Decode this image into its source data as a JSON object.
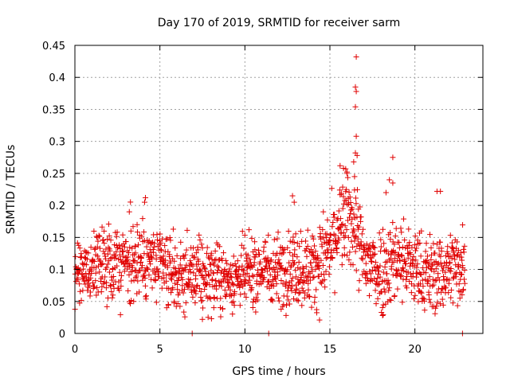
{
  "chart_data": {
    "type": "scatter",
    "title": "Day 170 of 2019, SRMTID for receiver sarm",
    "xlabel": "GPS time / hours",
    "ylabel": "SRMTID / TECUs",
    "xlim": [
      0,
      24
    ],
    "ylim": [
      0,
      0.45
    ],
    "x_ticks": [
      0,
      5,
      10,
      15,
      20
    ],
    "x_tick_labels": [
      "0",
      "5",
      "10",
      "15",
      "20"
    ],
    "y_ticks": [
      0,
      0.05,
      0.1,
      0.15,
      0.2,
      0.25,
      0.3,
      0.35,
      0.4,
      0.45
    ],
    "y_tick_labels": [
      "0",
      "0.05",
      "0.1",
      "0.15",
      "0.2",
      "0.25",
      "0.3",
      "0.35",
      "0.4",
      "0.45"
    ],
    "grid": true,
    "marker": "plus",
    "color": "#e00000",
    "series_color": "#e00000",
    "trend": {
      "hours": [
        0,
        1,
        2,
        3,
        4,
        5,
        6,
        7,
        8,
        9,
        10,
        11,
        12,
        13,
        14,
        15,
        15.5,
        16,
        16.5,
        17,
        18,
        19,
        20,
        21,
        22,
        23
      ],
      "mean": [
        0.09,
        0.1,
        0.11,
        0.11,
        0.115,
        0.105,
        0.09,
        0.09,
        0.09,
        0.085,
        0.09,
        0.1,
        0.1,
        0.105,
        0.1,
        0.13,
        0.16,
        0.18,
        0.17,
        0.11,
        0.1,
        0.12,
        0.1,
        0.09,
        0.1,
        0.11
      ],
      "spread": [
        0.03,
        0.035,
        0.04,
        0.04,
        0.045,
        0.04,
        0.035,
        0.035,
        0.035,
        0.03,
        0.035,
        0.035,
        0.035,
        0.04,
        0.04,
        0.045,
        0.04,
        0.05,
        0.05,
        0.045,
        0.045,
        0.045,
        0.04,
        0.04,
        0.04,
        0.04
      ]
    },
    "notable_points": [
      {
        "x": 16.55,
        "y": 0.432
      },
      {
        "x": 16.5,
        "y": 0.385
      },
      {
        "x": 16.55,
        "y": 0.378
      },
      {
        "x": 16.5,
        "y": 0.354
      },
      {
        "x": 16.55,
        "y": 0.308
      },
      {
        "x": 16.5,
        "y": 0.282
      },
      {
        "x": 16.6,
        "y": 0.278
      },
      {
        "x": 16.4,
        "y": 0.268
      },
      {
        "x": 16.45,
        "y": 0.245
      },
      {
        "x": 15.6,
        "y": 0.262
      },
      {
        "x": 15.8,
        "y": 0.258
      },
      {
        "x": 16.0,
        "y": 0.25
      },
      {
        "x": 18.7,
        "y": 0.275
      },
      {
        "x": 18.5,
        "y": 0.24
      },
      {
        "x": 18.7,
        "y": 0.235
      },
      {
        "x": 18.3,
        "y": 0.22
      },
      {
        "x": 21.3,
        "y": 0.222
      },
      {
        "x": 21.5,
        "y": 0.222
      },
      {
        "x": 12.8,
        "y": 0.215
      },
      {
        "x": 12.9,
        "y": 0.205
      },
      {
        "x": 4.15,
        "y": 0.212
      },
      {
        "x": 4.1,
        "y": 0.205
      },
      {
        "x": 3.2,
        "y": 0.19
      },
      {
        "x": 7.5,
        "y": 0.022
      },
      {
        "x": 6.9,
        "y": 0.0
      },
      {
        "x": 11.4,
        "y": 0.0
      },
      {
        "x": 22.8,
        "y": 0.0
      },
      {
        "x": 18.1,
        "y": 0.028
      }
    ]
  }
}
